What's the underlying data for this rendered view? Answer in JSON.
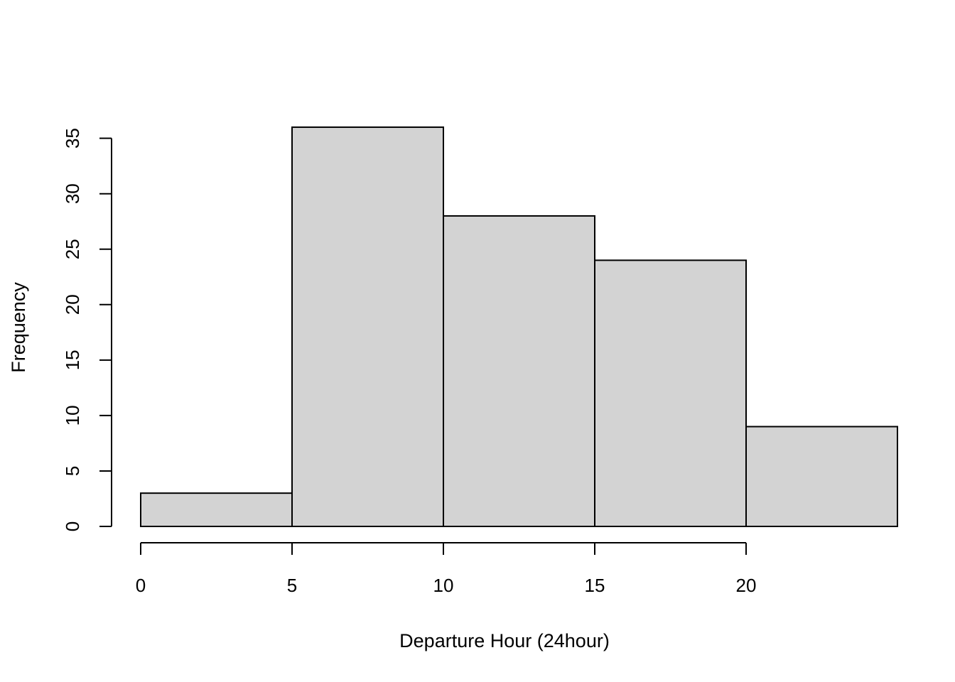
{
  "chart_data": {
    "type": "bar",
    "histogram": true,
    "bins": [
      {
        "start": 0,
        "end": 5,
        "count": 3
      },
      {
        "start": 5,
        "end": 10,
        "count": 36
      },
      {
        "start": 10,
        "end": 15,
        "count": 28
      },
      {
        "start": 15,
        "end": 20,
        "count": 24
      },
      {
        "start": 20,
        "end": 25,
        "count": 9
      }
    ],
    "title": "",
    "xlabel": "Departure Hour (24hour)",
    "ylabel": "Frequency",
    "xticks": [
      0,
      5,
      10,
      15,
      20
    ],
    "xtick_labels": [
      "0",
      "5",
      "10",
      "15",
      "20"
    ],
    "yticks": [
      0,
      5,
      10,
      15,
      20,
      25,
      30,
      35
    ],
    "ytick_labels": [
      "0",
      "5",
      "10",
      "15",
      "20",
      "25",
      "30",
      "35"
    ],
    "xlim": [
      0,
      25
    ],
    "ylim": [
      0,
      36
    ],
    "grid": false,
    "bar_color": "#d3d3d3",
    "edge_color": "#000000"
  }
}
